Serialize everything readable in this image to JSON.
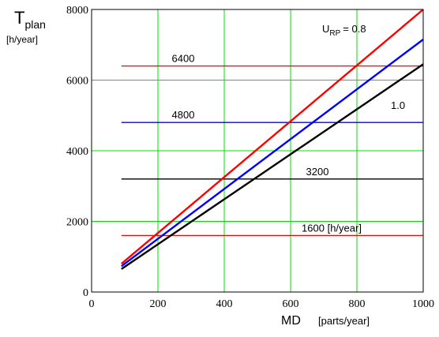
{
  "chart_data": {
    "type": "line",
    "title": "",
    "ylabel_main": "T",
    "ylabel_sub": "plan",
    "ylabel_unit": "[h/year]",
    "xlabel": "MD",
    "xlabel_unit": "[parts/year]",
    "xlim": [
      0,
      1000
    ],
    "ylim": [
      0,
      8000
    ],
    "grid": true,
    "x_ticks": [
      "0",
      "200",
      "400",
      "600",
      "800",
      "1000"
    ],
    "y_ticks": [
      "0",
      "2000",
      "4000",
      "6000",
      "8000"
    ],
    "series": [
      {
        "color": "#ff0000",
        "x": [
          90,
          1000
        ],
        "y": [
          800,
          8000
        ]
      },
      {
        "color": "#0000ff",
        "x": [
          90,
          1000
        ],
        "y": [
          730,
          7150
        ]
      },
      {
        "color": "#000000",
        "x": [
          90,
          1000
        ],
        "y": [
          650,
          6450
        ]
      }
    ],
    "hlines": [
      {
        "label": "6400",
        "y": 6400,
        "x": [
          90,
          1000
        ],
        "color": "#ff0000"
      },
      {
        "label": "4800",
        "y": 4800,
        "x": [
          90,
          1000
        ],
        "color": "#0000ff"
      },
      {
        "label": "3200",
        "y": 3200,
        "x": [
          90,
          1000
        ],
        "color": "#000000"
      },
      {
        "label": "1600 [h/year]",
        "y": 1600,
        "x": [
          90,
          1000
        ],
        "color": "#ff0000"
      }
    ],
    "annotations": [
      {
        "main": "U",
        "sub": "RP",
        "suffix": "= 0.8"
      },
      {
        "text": "1.0"
      }
    ]
  }
}
